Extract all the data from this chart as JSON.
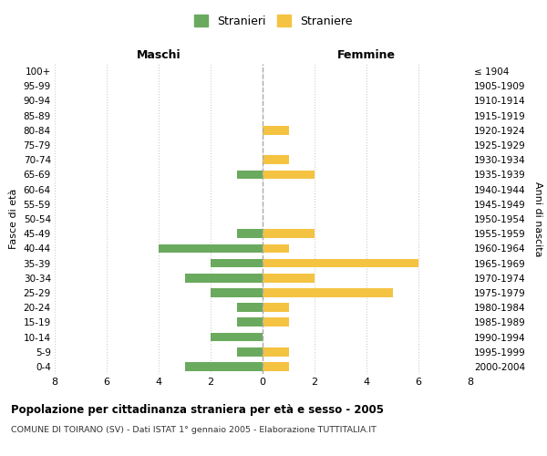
{
  "age_groups": [
    "100+",
    "95-99",
    "90-94",
    "85-89",
    "80-84",
    "75-79",
    "70-74",
    "65-69",
    "60-64",
    "55-59",
    "50-54",
    "45-49",
    "40-44",
    "35-39",
    "30-34",
    "25-29",
    "20-24",
    "15-19",
    "10-14",
    "5-9",
    "0-4"
  ],
  "birth_years": [
    "≤ 1904",
    "1905-1909",
    "1910-1914",
    "1915-1919",
    "1920-1924",
    "1925-1929",
    "1930-1934",
    "1935-1939",
    "1940-1944",
    "1945-1949",
    "1950-1954",
    "1955-1959",
    "1960-1964",
    "1965-1969",
    "1970-1974",
    "1975-1979",
    "1980-1984",
    "1985-1989",
    "1990-1994",
    "1995-1999",
    "2000-2004"
  ],
  "maschi": [
    0,
    0,
    0,
    0,
    0,
    0,
    0,
    1,
    0,
    0,
    0,
    1,
    4,
    2,
    3,
    2,
    1,
    1,
    2,
    1,
    3
  ],
  "femmine": [
    0,
    0,
    0,
    0,
    1,
    0,
    1,
    2,
    0,
    0,
    0,
    2,
    1,
    6,
    2,
    5,
    1,
    1,
    0,
    1,
    1
  ],
  "male_color": "#6aaa5e",
  "female_color": "#f5c342",
  "title": "Popolazione per cittadinanza straniera per età e sesso - 2005",
  "subtitle": "COMUNE DI TOIRANO (SV) - Dati ISTAT 1° gennaio 2005 - Elaborazione TUTTITALIA.IT",
  "xlabel_left": "Maschi",
  "xlabel_right": "Femmine",
  "ylabel_left": "Fasce di età",
  "ylabel_right": "Anni di nascita",
  "legend_male": "Stranieri",
  "legend_female": "Straniere",
  "xlim": 8,
  "background_color": "#ffffff",
  "grid_color": "#cccccc"
}
